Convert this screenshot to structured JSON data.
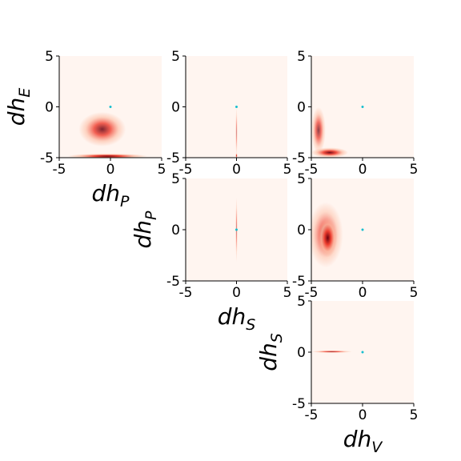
{
  "colors": {
    "background": "#fff5f0",
    "low": "#fcbba1",
    "mid": "#ef3b2c",
    "high": "#67000d",
    "marker": "#17becf",
    "axis": "#000000"
  },
  "chart_data": [
    {
      "type": "heatmap",
      "id": "dhP-dhE",
      "xlim": [
        -5,
        5
      ],
      "ylim": [
        -5,
        5
      ],
      "xticks": [
        "-5",
        "0",
        "5"
      ],
      "yticks": [
        "-5",
        "0",
        "5"
      ],
      "xlabel": {
        "main": "dh",
        "sub": "P"
      },
      "ylabel": {
        "main": "dh",
        "sub": "E"
      },
      "true_point": [
        0,
        0
      ],
      "density_blobs": [
        {
          "cx": -0.8,
          "cy": -2.2,
          "rx": 2.3,
          "ry": 1.7,
          "weight": 0.85
        },
        {
          "cx": -0.3,
          "cy": -4.85,
          "rx": 3.9,
          "ry": 0.25,
          "weight": 1.0
        }
      ]
    },
    {
      "type": "heatmap",
      "id": "dhS-dhE",
      "xlim": [
        -5,
        5
      ],
      "ylim": [
        -5,
        5
      ],
      "xticks": [
        "-5",
        "0",
        "5"
      ],
      "yticks": [
        "-5",
        "0",
        "5"
      ],
      "xlabel": {
        "main": "",
        "sub": ""
      },
      "ylabel": {
        "main": "",
        "sub": ""
      },
      "true_point": [
        0,
        0
      ],
      "density_blobs": [
        {
          "cx": 0,
          "cy": -2.5,
          "rx": 0.06,
          "ry": 2.5,
          "weight": 0.5
        },
        {
          "cx": 0,
          "cy": -4.8,
          "rx": 0.08,
          "ry": 0.25,
          "weight": 0.9
        }
      ]
    },
    {
      "type": "heatmap",
      "id": "dhV-dhE",
      "xlim": [
        -5,
        5
      ],
      "ylim": [
        -5,
        5
      ],
      "xticks": [
        "-5",
        "0",
        "5"
      ],
      "yticks": [
        "-5",
        "0",
        "5"
      ],
      "xlabel": {
        "main": "",
        "sub": ""
      },
      "ylabel": {
        "main": "",
        "sub": ""
      },
      "true_point": [
        0,
        0
      ],
      "density_blobs": [
        {
          "cx": -4.3,
          "cy": -2.3,
          "rx": 0.7,
          "ry": 2.3,
          "weight": 0.75
        },
        {
          "cx": -3.2,
          "cy": -4.5,
          "rx": 1.8,
          "ry": 0.5,
          "weight": 0.95
        }
      ]
    },
    {
      "type": "heatmap",
      "id": "dhS-dhP",
      "xlim": [
        -5,
        5
      ],
      "ylim": [
        -5,
        5
      ],
      "xticks": [
        "-5",
        "0",
        "5"
      ],
      "yticks": [
        "-5",
        "0",
        "5"
      ],
      "xlabel": {
        "main": "dh",
        "sub": "S"
      },
      "ylabel": {
        "main": "dh",
        "sub": "P"
      },
      "true_point": [
        0,
        0
      ],
      "density_blobs": [
        {
          "cx": 0,
          "cy": 0,
          "rx": 0.05,
          "ry": 3.2,
          "weight": 0.55
        }
      ]
    },
    {
      "type": "heatmap",
      "id": "dhV-dhP",
      "xlim": [
        -5,
        5
      ],
      "ylim": [
        -5,
        5
      ],
      "xticks": [
        "-5",
        "0",
        "5"
      ],
      "yticks": [
        "-5",
        "0",
        "5"
      ],
      "xlabel": {
        "main": "",
        "sub": ""
      },
      "ylabel": {
        "main": "",
        "sub": ""
      },
      "true_point": [
        0,
        0
      ],
      "density_blobs": [
        {
          "cx": -3.6,
          "cy": -0.5,
          "rx": 1.7,
          "ry": 3.2,
          "weight": 0.7
        },
        {
          "cx": -3.4,
          "cy": -0.8,
          "rx": 0.9,
          "ry": 1.9,
          "weight": 1.0
        }
      ]
    },
    {
      "type": "heatmap",
      "id": "dhV-dhS",
      "xlim": [
        -5,
        5
      ],
      "ylim": [
        -5,
        5
      ],
      "xticks": [
        "-5",
        "0",
        "5"
      ],
      "yticks": [
        "-5",
        "0",
        "5"
      ],
      "xlabel": {
        "main": "dh",
        "sub": "V"
      },
      "ylabel": {
        "main": "dh",
        "sub": "S"
      },
      "true_point": [
        0,
        0
      ],
      "density_blobs": [
        {
          "cx": -3.0,
          "cy": 0.05,
          "rx": 2.0,
          "ry": 0.12,
          "weight": 0.85
        }
      ]
    }
  ]
}
